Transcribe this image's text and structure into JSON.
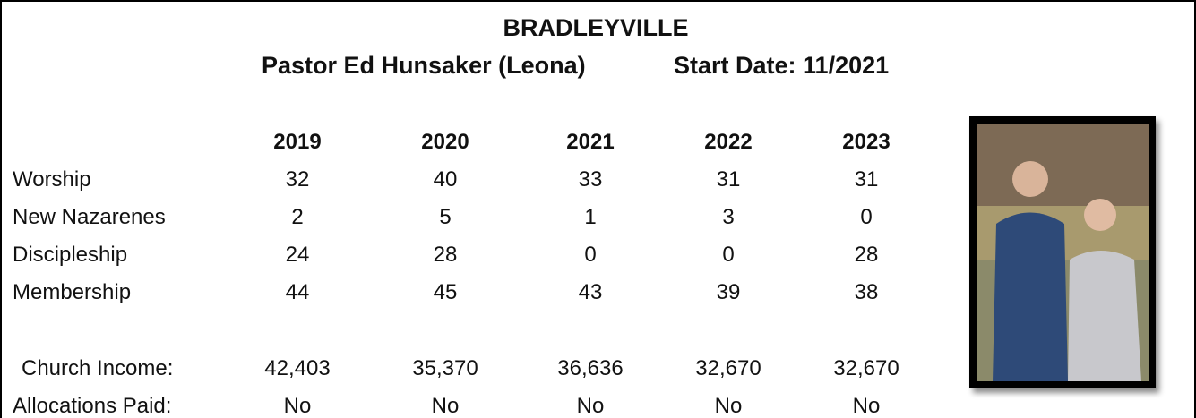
{
  "header": {
    "title": "BRADLEYVILLE",
    "pastor": "Pastor Ed Hunsaker (Leona)",
    "start_date": "Start Date: 11/2021"
  },
  "table": {
    "columns": [
      "2019",
      "2020",
      "2021",
      "2022",
      "2023"
    ],
    "rows": [
      {
        "label": "Worship",
        "values": [
          "32",
          "40",
          "33",
          "31",
          "31"
        ]
      },
      {
        "label": "New Nazarenes",
        "values": [
          "2",
          "5",
          "1",
          "3",
          "0"
        ]
      },
      {
        "label": "Discipleship",
        "values": [
          "24",
          "28",
          "0",
          "0",
          "28"
        ]
      },
      {
        "label": "Membership",
        "values": [
          "44",
          "45",
          "43",
          "39",
          "38"
        ]
      },
      {
        "label": "Church Income:",
        "values": [
          "42,403",
          "35,370",
          "36,636",
          "32,670",
          "32,670"
        ]
      },
      {
        "label": "Allocations Paid:",
        "values": [
          "No",
          "No",
          "No",
          "No",
          "No"
        ]
      }
    ]
  }
}
